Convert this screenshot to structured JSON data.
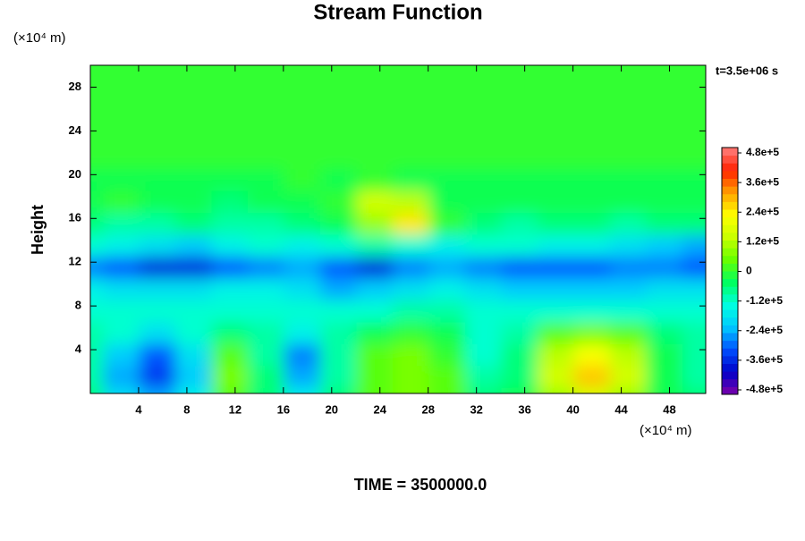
{
  "chart_data": {
    "type": "contour",
    "title": "Stream Function",
    "ylabel": "Height",
    "y_unit_label": "(×10⁴ m)",
    "x_unit_label": "(×10⁴ m)",
    "time_label": "t=3.5e+06 s",
    "footer": "TIME = 3500000.0",
    "xlim": [
      0,
      51
    ],
    "ylim": [
      0,
      30
    ],
    "xticks": [
      4,
      8,
      12,
      16,
      20,
      24,
      28,
      32,
      36,
      40,
      44,
      48
    ],
    "yticks": [
      4,
      8,
      12,
      16,
      20,
      24,
      28
    ],
    "x": [
      0,
      3,
      6,
      9,
      12,
      15,
      18,
      21,
      24,
      27,
      30,
      33,
      36,
      39,
      42,
      45,
      48,
      51
    ],
    "y": [
      0,
      2,
      4,
      6,
      8,
      10,
      12,
      14,
      16,
      18,
      20,
      22,
      24,
      26,
      28,
      30
    ],
    "z": [
      [
        -60000.0,
        -180000.0,
        -240000.0,
        -150000.0,
        30000.0,
        -60000.0,
        -150000.0,
        -60000.0,
        30000.0,
        60000.0,
        30000.0,
        -60000.0,
        -30000.0,
        90000.0,
        150000.0,
        90000.0,
        -30000.0,
        -60000.0
      ],
      [
        -90000.0,
        -240000.0,
        -330000.0,
        -210000.0,
        60000.0,
        -60000.0,
        -240000.0,
        -90000.0,
        30000.0,
        60000.0,
        30000.0,
        -90000.0,
        -60000.0,
        150000.0,
        270000.0,
        150000.0,
        -30000.0,
        -90000.0
      ],
      [
        -90000.0,
        -210000.0,
        -300000.0,
        -180000.0,
        30000.0,
        -90000.0,
        -270000.0,
        -90000.0,
        30000.0,
        60000.0,
        0,
        -120000.0,
        -60000.0,
        120000.0,
        210000.0,
        120000.0,
        -30000.0,
        -90000.0
      ],
      [
        -90000.0,
        -120000.0,
        -180000.0,
        -120000.0,
        -60000.0,
        -90000.0,
        -150000.0,
        -90000.0,
        -30000.0,
        0,
        -30000.0,
        -120000.0,
        -90000.0,
        30000.0,
        60000.0,
        30000.0,
        -60000.0,
        -90000.0
      ],
      [
        -120000.0,
        -120000.0,
        -120000.0,
        -120000.0,
        -120000.0,
        -120000.0,
        -120000.0,
        -120000.0,
        -120000.0,
        -90000.0,
        -90000.0,
        -120000.0,
        -120000.0,
        -120000.0,
        -120000.0,
        -120000.0,
        -120000.0,
        -120000.0
      ],
      [
        -150000.0,
        -180000.0,
        -180000.0,
        -180000.0,
        -150000.0,
        -150000.0,
        -180000.0,
        -240000.0,
        -210000.0,
        -180000.0,
        -150000.0,
        -180000.0,
        -210000.0,
        -210000.0,
        -210000.0,
        -210000.0,
        -180000.0,
        -180000.0
      ],
      [
        -270000.0,
        -300000.0,
        -360000.0,
        -360000.0,
        -300000.0,
        -270000.0,
        -240000.0,
        -300000.0,
        -360000.0,
        -270000.0,
        -240000.0,
        -270000.0,
        -300000.0,
        -300000.0,
        -300000.0,
        -270000.0,
        -270000.0,
        -300000.0
      ],
      [
        -120000.0,
        -150000.0,
        -180000.0,
        -210000.0,
        -150000.0,
        -120000.0,
        -150000.0,
        -120000.0,
        -90000.0,
        -120000.0,
        -150000.0,
        -120000.0,
        -120000.0,
        -150000.0,
        -150000.0,
        -180000.0,
        -210000.0,
        -240000.0
      ],
      [
        -60000.0,
        -90000.0,
        -90000.0,
        -60000.0,
        -90000.0,
        -90000.0,
        -60000.0,
        -30000.0,
        90000.0,
        240000.0,
        0,
        -60000.0,
        -90000.0,
        -60000.0,
        -60000.0,
        -90000.0,
        -60000.0,
        -60000.0
      ],
      [
        -30000.0,
        0,
        -30000.0,
        -30000.0,
        -60000.0,
        -30000.0,
        -30000.0,
        0,
        150000.0,
        120000.0,
        -30000.0,
        -30000.0,
        -30000.0,
        -30000.0,
        -30000.0,
        -30000.0,
        -30000.0,
        -30000.0
      ],
      [
        -30000.0,
        -30000.0,
        -30000.0,
        -30000.0,
        -30000.0,
        -30000.0,
        0,
        -30000.0,
        0,
        -30000.0,
        -30000.0,
        -30000.0,
        -30000.0,
        -30000.0,
        -30000.0,
        -30000.0,
        -30000.0,
        -30000.0
      ],
      [
        0,
        0,
        0,
        0,
        0,
        0,
        0,
        0,
        0,
        0,
        0,
        0,
        0,
        0,
        0,
        0,
        0,
        0
      ],
      [
        0,
        0,
        0,
        0,
        0,
        0,
        0,
        0,
        0,
        0,
        0,
        0,
        0,
        0,
        0,
        0,
        0,
        0
      ],
      [
        0,
        0,
        0,
        0,
        0,
        0,
        0,
        0,
        0,
        0,
        0,
        0,
        0,
        0,
        0,
        0,
        0,
        0
      ],
      [
        0,
        0,
        0,
        0,
        0,
        0,
        0,
        0,
        0,
        0,
        0,
        0,
        0,
        0,
        0,
        0,
        0,
        0
      ],
      [
        0,
        0,
        0,
        0,
        0,
        0,
        0,
        0,
        0,
        0,
        0,
        0,
        0,
        0,
        0,
        0,
        0,
        0
      ]
    ],
    "colorbar": {
      "lim": [
        -480000.0,
        480000.0
      ],
      "ticks": [
        {
          "value": -480000,
          "label": "-4.8e+5"
        },
        {
          "value": -360000,
          "label": "-3.6e+5"
        },
        {
          "value": -240000,
          "label": "-2.4e+5"
        },
        {
          "value": -120000,
          "label": "-1.2e+5"
        },
        0,
        {
          "value": 120000,
          "label": "1.2e+5"
        },
        {
          "value": 240000,
          "label": "2.4e+5"
        },
        {
          "value": 360000,
          "label": "3.6e+5"
        },
        {
          "value": 480000,
          "label": "4.8e+5"
        }
      ],
      "colors": [
        "#8000a8",
        "#0000c8",
        "#0050ff",
        "#00c8ff",
        "#00ffe0",
        "#00ff60",
        "#66ff00",
        "#c8ff00",
        "#ffff00",
        "#ffa000",
        "#ff2000",
        "#ff8080"
      ]
    }
  }
}
